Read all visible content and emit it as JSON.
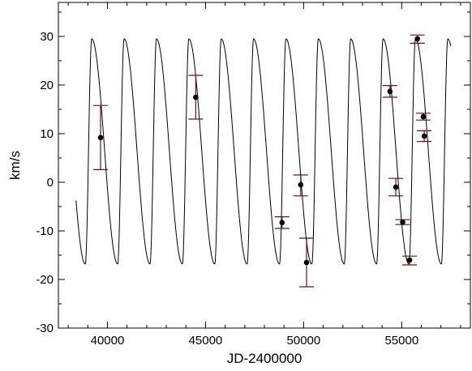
{
  "chart_data": {
    "type": "scatter",
    "title": "",
    "xlabel": "JD-2400000",
    "ylabel": "km/s",
    "xlim": [
      37500,
      58500
    ],
    "ylim": [
      -30,
      37
    ],
    "x_ticks": [
      40000,
      45000,
      50000,
      55000
    ],
    "x_tick_labels": [
      "40000",
      "45000",
      "50000",
      "55000"
    ],
    "y_ticks": [
      -30,
      -20,
      -10,
      0,
      10,
      20,
      30
    ],
    "y_tick_labels": [
      "-30",
      "-20",
      "-10",
      "0",
      "10",
      "20",
      "30"
    ],
    "grid": false,
    "legend": "none",
    "colors": {
      "curve": "#000000",
      "points": "#000000",
      "error_bars": "#6b1010",
      "axes": "#000000"
    },
    "model_curve": {
      "description": "orbital radial-velocity fit",
      "period": 1650,
      "x_start": 38400,
      "x_end": 57500,
      "max": 29.5,
      "min": -16.8,
      "first_peak_x": 39200,
      "rise_fraction": 0.2
    },
    "series": [
      {
        "points": [
          {
            "x": 39650,
            "y": 9.2,
            "err_low": 6.6,
            "err_high": 6.6
          },
          {
            "x": 44500,
            "y": 17.5,
            "err_low": 4.5,
            "err_high": 4.5
          },
          {
            "x": 48900,
            "y": -8.3,
            "err_low": 1.2,
            "err_high": 1.2
          },
          {
            "x": 49850,
            "y": -0.5,
            "err_low": 2.3,
            "err_high": 2.0
          },
          {
            "x": 50150,
            "y": -16.5,
            "err_low": 5.0,
            "err_high": 5.0
          },
          {
            "x": 54400,
            "y": 18.7,
            "err_low": 1.2,
            "err_high": 1.2
          },
          {
            "x": 54700,
            "y": -1.0,
            "err_low": 1.8,
            "err_high": 1.8
          },
          {
            "x": 55050,
            "y": -8.2,
            "err_low": 0.5,
            "err_high": 0.5
          },
          {
            "x": 55400,
            "y": -16.0,
            "err_low": 1.0,
            "err_high": 0.8
          },
          {
            "x": 55800,
            "y": 29.5,
            "err_low": 0.9,
            "err_high": 0.8
          },
          {
            "x": 56100,
            "y": 13.5,
            "err_low": 0.7,
            "err_high": 0.7
          },
          {
            "x": 56150,
            "y": 9.5,
            "err_low": 1.1,
            "err_high": 1.1
          }
        ]
      }
    ]
  }
}
